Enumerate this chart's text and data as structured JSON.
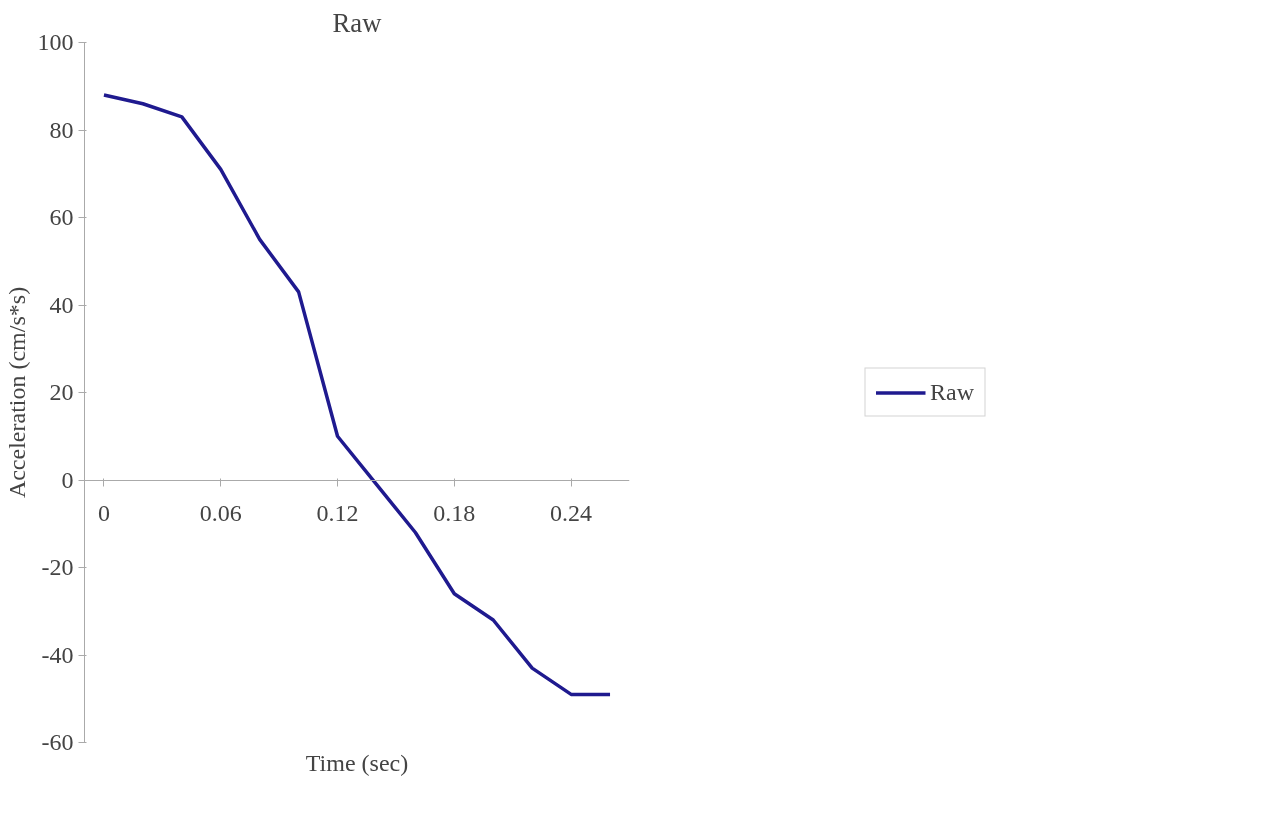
{
  "chart_data": {
    "type": "line",
    "title": "Raw",
    "xlabel": "Time (sec)",
    "ylabel": "Acceleration (cm/s*s)",
    "x": [
      0,
      0.02,
      0.04,
      0.06,
      0.08,
      0.1,
      0.12,
      0.14,
      0.16,
      0.18,
      0.2,
      0.22,
      0.24,
      0.26
    ],
    "series": [
      {
        "name": "Raw",
        "color": "#1f1a8f",
        "values": [
          88,
          86,
          83,
          71,
          55,
          43,
          10,
          -1,
          -12,
          -26,
          -32,
          -43,
          -49,
          -49
        ]
      }
    ],
    "xlim": [
      -0.01,
      0.27
    ],
    "xticks": [
      0,
      0.06,
      0.12,
      0.18,
      0.24
    ],
    "ylim": [
      -60,
      100
    ],
    "yticks": [
      -60,
      -40,
      -20,
      0,
      20,
      40,
      60,
      80,
      100
    ],
    "grid": false,
    "legend": "right",
    "marker": "none",
    "line_style": "solid"
  }
}
